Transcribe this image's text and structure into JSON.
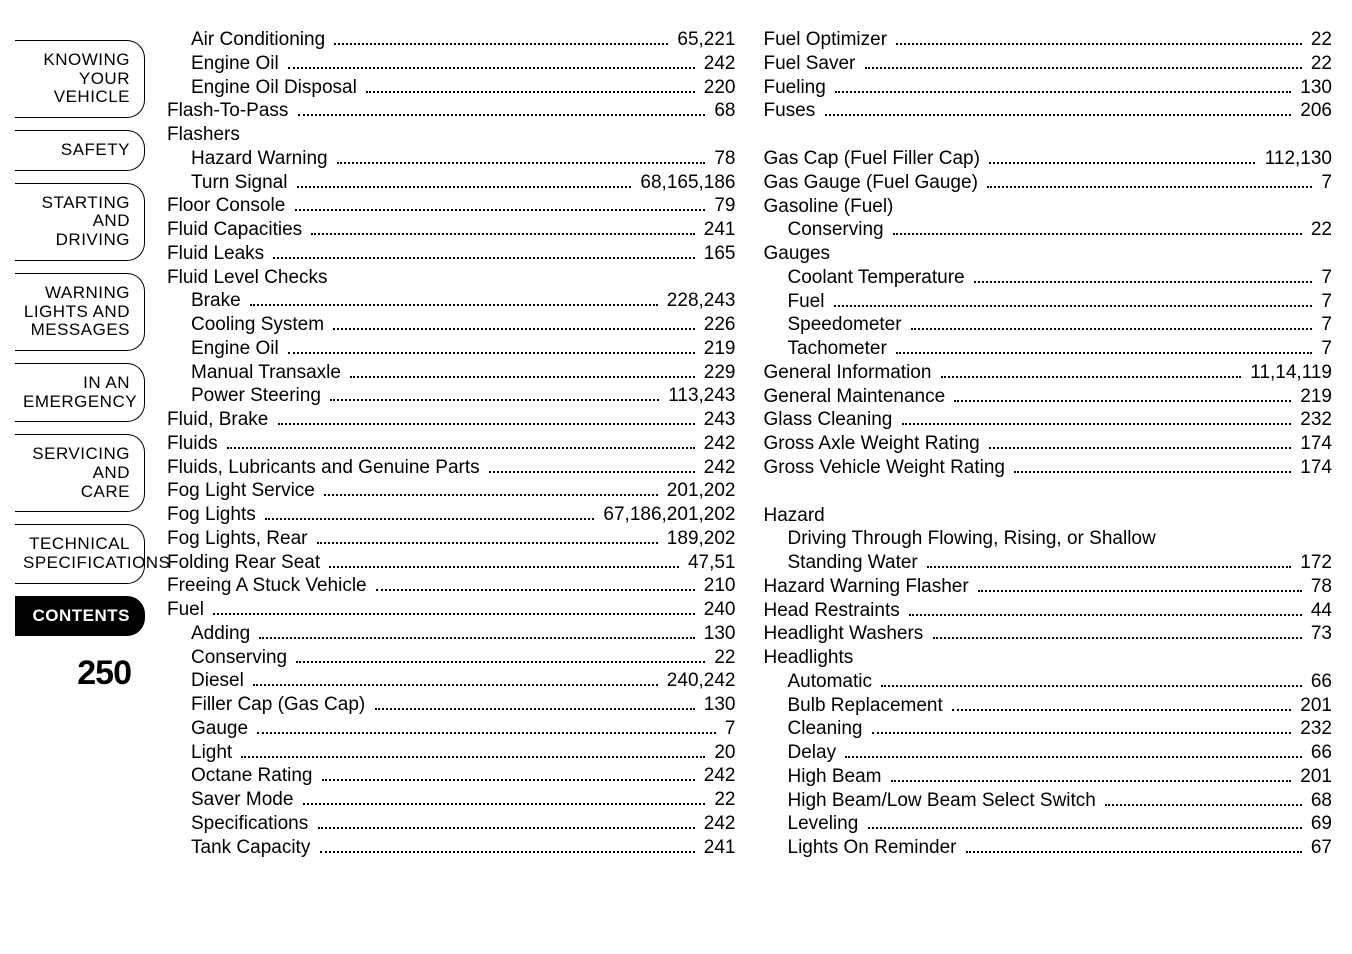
{
  "pageNumber": "250",
  "sidebar": {
    "tabs": [
      {
        "label": "KNOWING\nYOUR\nVEHICLE",
        "active": false
      },
      {
        "label": "SAFETY",
        "active": false
      },
      {
        "label": "STARTING\nAND\nDRIVING",
        "active": false
      },
      {
        "label": "WARNING\nLIGHTS AND\nMESSAGES",
        "active": false
      },
      {
        "label": "IN AN\nEMERGENCY",
        "active": false
      },
      {
        "label": "SERVICING\nAND\nCARE",
        "active": false
      },
      {
        "label": "TECHNICAL\nSPECIFICATIONS",
        "active": false
      },
      {
        "label": "CONTENTS",
        "active": true
      }
    ]
  },
  "columns": [
    [
      {
        "type": "entry",
        "indent": 1,
        "label": "Air Conditioning",
        "page": "65,221"
      },
      {
        "type": "entry",
        "indent": 1,
        "label": "Engine Oil",
        "page": "242"
      },
      {
        "type": "entry",
        "indent": 1,
        "label": "Engine Oil Disposal",
        "page": "220"
      },
      {
        "type": "entry",
        "indent": 0,
        "label": "Flash-To-Pass",
        "page": "68"
      },
      {
        "type": "heading",
        "indent": 0,
        "label": "Flashers"
      },
      {
        "type": "entry",
        "indent": 1,
        "label": "Hazard Warning",
        "page": "78"
      },
      {
        "type": "entry",
        "indent": 1,
        "label": "Turn Signal",
        "page": "68,165,186"
      },
      {
        "type": "entry",
        "indent": 0,
        "label": "Floor Console",
        "page": "79"
      },
      {
        "type": "entry",
        "indent": 0,
        "label": "Fluid Capacities",
        "page": "241"
      },
      {
        "type": "entry",
        "indent": 0,
        "label": "Fluid Leaks",
        "page": "165"
      },
      {
        "type": "heading",
        "indent": 0,
        "label": "Fluid Level Checks"
      },
      {
        "type": "entry",
        "indent": 1,
        "label": "Brake",
        "page": "228,243"
      },
      {
        "type": "entry",
        "indent": 1,
        "label": "Cooling System",
        "page": "226"
      },
      {
        "type": "entry",
        "indent": 1,
        "label": "Engine Oil",
        "page": "219"
      },
      {
        "type": "entry",
        "indent": 1,
        "label": "Manual Transaxle",
        "page": "229"
      },
      {
        "type": "entry",
        "indent": 1,
        "label": "Power Steering",
        "page": "113,243"
      },
      {
        "type": "entry",
        "indent": 0,
        "label": "Fluid, Brake",
        "page": "243"
      },
      {
        "type": "entry",
        "indent": 0,
        "label": "Fluids",
        "page": "242"
      },
      {
        "type": "entry",
        "indent": 0,
        "label": "Fluids, Lubricants and Genuine Parts",
        "page": "242"
      },
      {
        "type": "entry",
        "indent": 0,
        "label": "Fog Light Service",
        "page": "201,202"
      },
      {
        "type": "entry",
        "indent": 0,
        "label": "Fog Lights",
        "page": "67,186,201,202"
      },
      {
        "type": "entry",
        "indent": 0,
        "label": "Fog Lights, Rear",
        "page": "189,202"
      },
      {
        "type": "entry",
        "indent": 0,
        "label": "Folding Rear Seat",
        "page": "47,51"
      },
      {
        "type": "entry",
        "indent": 0,
        "label": "Freeing A Stuck Vehicle",
        "page": "210"
      },
      {
        "type": "entry",
        "indent": 0,
        "label": "Fuel",
        "page": "240"
      },
      {
        "type": "entry",
        "indent": 1,
        "label": "Adding",
        "page": "130"
      },
      {
        "type": "entry",
        "indent": 1,
        "label": "Conserving",
        "page": "22"
      },
      {
        "type": "entry",
        "indent": 1,
        "label": "Diesel",
        "page": "240,242"
      },
      {
        "type": "entry",
        "indent": 1,
        "label": "Filler Cap (Gas Cap)",
        "page": "130"
      },
      {
        "type": "entry",
        "indent": 1,
        "label": "Gauge",
        "page": "7"
      },
      {
        "type": "entry",
        "indent": 1,
        "label": "Light",
        "page": "20"
      },
      {
        "type": "entry",
        "indent": 1,
        "label": "Octane Rating",
        "page": "242"
      },
      {
        "type": "entry",
        "indent": 1,
        "label": "Saver Mode",
        "page": "22"
      },
      {
        "type": "entry",
        "indent": 1,
        "label": "Specifications",
        "page": "242"
      },
      {
        "type": "entry",
        "indent": 1,
        "label": "Tank Capacity",
        "page": "241"
      }
    ],
    [
      {
        "type": "entry",
        "indent": 0,
        "label": "Fuel Optimizer",
        "page": "22"
      },
      {
        "type": "entry",
        "indent": 0,
        "label": "Fuel Saver",
        "page": "22"
      },
      {
        "type": "entry",
        "indent": 0,
        "label": "Fueling",
        "page": "130"
      },
      {
        "type": "entry",
        "indent": 0,
        "label": "Fuses",
        "page": "206"
      },
      {
        "type": "spacer"
      },
      {
        "type": "entry",
        "indent": 0,
        "label": "Gas Cap (Fuel Filler Cap)",
        "page": "112,130"
      },
      {
        "type": "entry",
        "indent": 0,
        "label": "Gas Gauge (Fuel Gauge)",
        "page": "7"
      },
      {
        "type": "heading",
        "indent": 0,
        "label": "Gasoline (Fuel)"
      },
      {
        "type": "entry",
        "indent": 1,
        "label": "Conserving",
        "page": "22"
      },
      {
        "type": "heading",
        "indent": 0,
        "label": "Gauges"
      },
      {
        "type": "entry",
        "indent": 1,
        "label": "Coolant Temperature",
        "page": "7"
      },
      {
        "type": "entry",
        "indent": 1,
        "label": "Fuel",
        "page": "7"
      },
      {
        "type": "entry",
        "indent": 1,
        "label": "Speedometer",
        "page": "7"
      },
      {
        "type": "entry",
        "indent": 1,
        "label": "Tachometer",
        "page": "7"
      },
      {
        "type": "entry",
        "indent": 0,
        "label": "General Information",
        "page": "11,14,119"
      },
      {
        "type": "entry",
        "indent": 0,
        "label": "General Maintenance",
        "page": "219"
      },
      {
        "type": "entry",
        "indent": 0,
        "label": "Glass Cleaning",
        "page": "232"
      },
      {
        "type": "entry",
        "indent": 0,
        "label": "Gross Axle Weight Rating",
        "page": "174"
      },
      {
        "type": "entry",
        "indent": 0,
        "label": "Gross Vehicle Weight Rating",
        "page": "174"
      },
      {
        "type": "spacer"
      },
      {
        "type": "heading",
        "indent": 0,
        "label": "Hazard"
      },
      {
        "type": "heading",
        "indent": 1,
        "label": "Driving Through Flowing, Rising, or Shallow"
      },
      {
        "type": "entry",
        "indent": 1,
        "label": "Standing Water",
        "page": "172"
      },
      {
        "type": "entry",
        "indent": 0,
        "label": "Hazard Warning Flasher",
        "page": "78"
      },
      {
        "type": "entry",
        "indent": 0,
        "label": "Head Restraints",
        "page": "44"
      },
      {
        "type": "entry",
        "indent": 0,
        "label": "Headlight Washers",
        "page": "73"
      },
      {
        "type": "heading",
        "indent": 0,
        "label": "Headlights"
      },
      {
        "type": "entry",
        "indent": 1,
        "label": "Automatic",
        "page": "66"
      },
      {
        "type": "entry",
        "indent": 1,
        "label": "Bulb Replacement",
        "page": "201"
      },
      {
        "type": "entry",
        "indent": 1,
        "label": "Cleaning",
        "page": "232"
      },
      {
        "type": "entry",
        "indent": 1,
        "label": "Delay",
        "page": "66"
      },
      {
        "type": "entry",
        "indent": 1,
        "label": "High Beam",
        "page": "201"
      },
      {
        "type": "entry",
        "indent": 1,
        "label": "High Beam/Low Beam Select Switch",
        "page": "68"
      },
      {
        "type": "entry",
        "indent": 1,
        "label": "Leveling",
        "page": "69"
      },
      {
        "type": "entry",
        "indent": 1,
        "label": "Lights On Reminder",
        "page": "67"
      }
    ]
  ]
}
